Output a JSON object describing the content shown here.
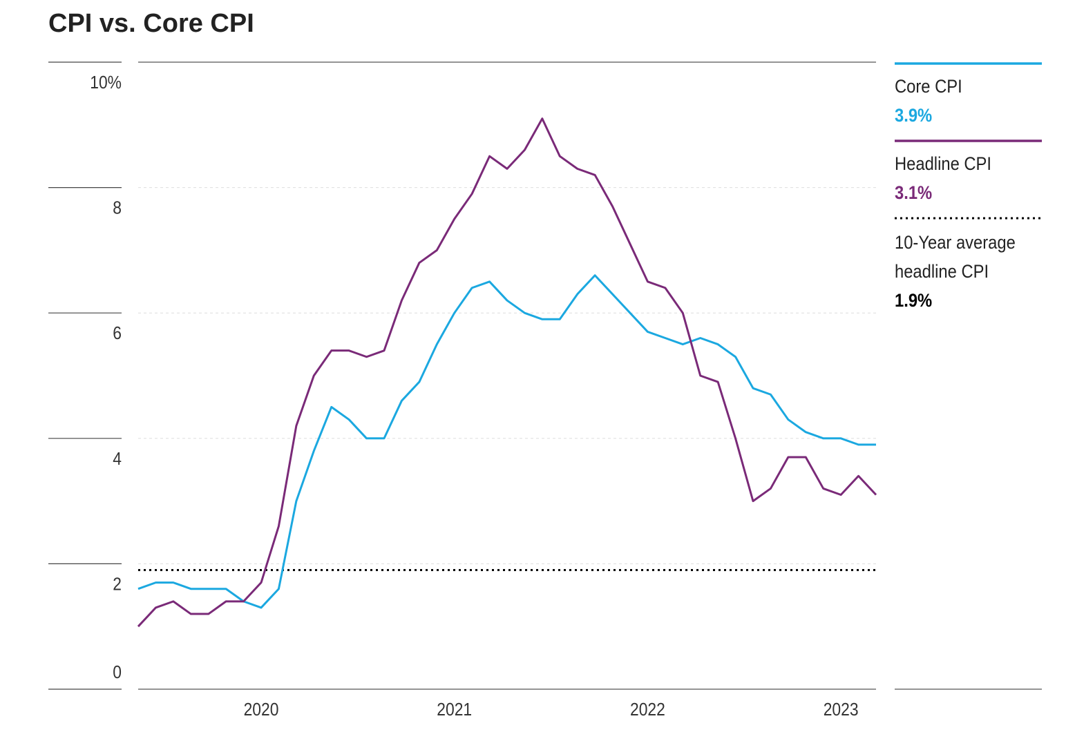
{
  "chart_data": {
    "type": "line",
    "title": "CPI vs. Core CPI",
    "categories": [
      null,
      null,
      null,
      null,
      null,
      null,
      null,
      "2020",
      null,
      null,
      null,
      null,
      null,
      null,
      null,
      null,
      null,
      null,
      "2021",
      null,
      null,
      null,
      null,
      null,
      null,
      null,
      null,
      null,
      null,
      "2022",
      null,
      null,
      null,
      null,
      null,
      null,
      null,
      null,
      null,
      null,
      "2023",
      null,
      null
    ],
    "series": [
      {
        "name": "Core CPI",
        "color": "#1ba8e0",
        "last_value_label": "3.9%",
        "values": [
          1.6,
          1.7,
          1.7,
          1.6,
          1.6,
          1.6,
          1.4,
          1.3,
          1.6,
          3.0,
          3.8,
          4.5,
          4.3,
          4.0,
          4.0,
          4.6,
          4.9,
          5.5,
          6.0,
          6.4,
          6.5,
          6.2,
          6.0,
          5.9,
          5.9,
          6.3,
          6.6,
          6.3,
          6.0,
          5.7,
          5.6,
          5.5,
          5.6,
          5.5,
          5.3,
          4.8,
          4.7,
          4.3,
          4.1,
          4.0,
          4.0,
          3.9,
          3.9
        ]
      },
      {
        "name": "Headline CPI",
        "color": "#7a2a78",
        "last_value_label": "3.1%",
        "values": [
          1.0,
          1.3,
          1.4,
          1.2,
          1.2,
          1.4,
          1.4,
          1.7,
          2.6,
          4.2,
          5.0,
          5.4,
          5.4,
          5.3,
          5.4,
          6.2,
          6.8,
          7.0,
          7.5,
          7.9,
          8.5,
          8.3,
          8.6,
          9.1,
          8.5,
          8.3,
          8.2,
          7.7,
          7.1,
          6.5,
          6.4,
          6.0,
          5.0,
          4.9,
          4.0,
          3.0,
          3.2,
          3.7,
          3.7,
          3.2,
          3.1,
          3.4,
          3.1
        ]
      }
    ],
    "reference_line": {
      "name": "10-Year average headline CPI",
      "value": 1.9,
      "label": "1.9%",
      "color": "#000000"
    },
    "ylim": [
      0,
      10
    ],
    "yticks": [
      0,
      2,
      4,
      6,
      8,
      {
        "value": 10,
        "label": "10%"
      }
    ],
    "grid": true
  }
}
